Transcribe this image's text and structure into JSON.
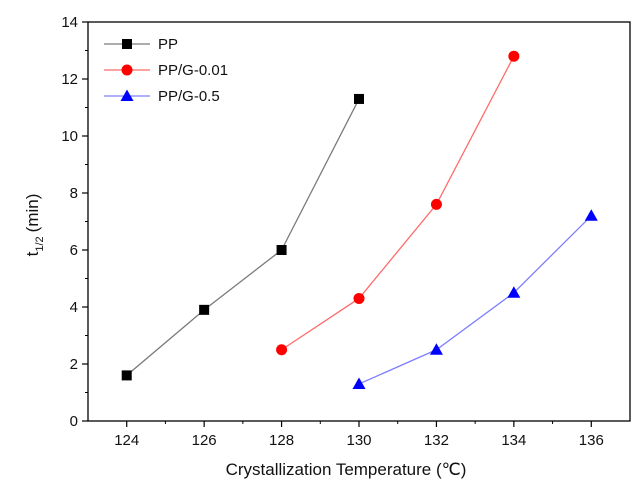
{
  "chart_data": {
    "type": "line",
    "xlabel": "Crystallization Temperature (℃)",
    "ylabel_main": "t",
    "ylabel_sub": "1/2",
    "ylabel_unit": "(min)",
    "xlim": [
      123,
      137
    ],
    "ylim": [
      0,
      14
    ],
    "xticks": [
      124,
      126,
      128,
      130,
      132,
      134,
      136
    ],
    "yticks": [
      0,
      2,
      4,
      6,
      8,
      10,
      12,
      14
    ],
    "grid": false,
    "legend_position": "top-left",
    "series": [
      {
        "name": "PP",
        "color": "#000000",
        "line_color": "#7a7a7a",
        "marker": "square",
        "x": [
          124,
          126,
          128,
          130
        ],
        "y": [
          1.6,
          3.9,
          6.0,
          11.3
        ]
      },
      {
        "name": "PP/G-0.01",
        "color": "#ff0000",
        "line_color": "#ff6b6b",
        "marker": "circle",
        "x": [
          128,
          130,
          132,
          134
        ],
        "y": [
          2.5,
          4.3,
          7.6,
          12.8
        ]
      },
      {
        "name": "PP/G-0.5",
        "color": "#0000ff",
        "line_color": "#7f7fff",
        "marker": "triangle",
        "x": [
          130,
          132,
          134,
          136
        ],
        "y": [
          1.3,
          2.5,
          4.5,
          7.2
        ]
      }
    ]
  }
}
